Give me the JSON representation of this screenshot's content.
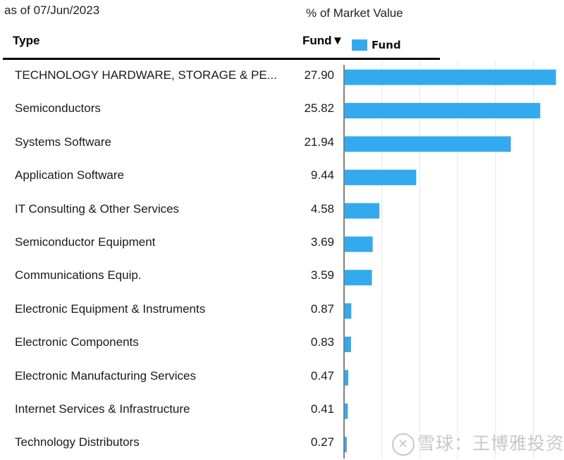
{
  "header": {
    "as_of": "as of 07/Jun/2023",
    "measure_title": "% of Market Value",
    "col_type": "Type",
    "col_fund": "Fund▼",
    "legend_label": "Fund"
  },
  "colors": {
    "bar": "#33aaee",
    "grid": "#e6e6e6",
    "axis": "#555555"
  },
  "watermark": {
    "icon": "snowball-logo-icon",
    "text": "雪球：王博雅投资"
  },
  "chart_data": {
    "type": "bar",
    "orientation": "horizontal",
    "title": "% of Market Value",
    "xlabel": "",
    "ylabel": "Type",
    "xlim": [
      0,
      28
    ],
    "grid": true,
    "grid_step": 5,
    "legend": {
      "entries": [
        "Fund"
      ],
      "placement": "top"
    },
    "categories": [
      "TECHNOLOGY HARDWARE, STORAGE & PE...",
      "Semiconductors",
      "Systems Software",
      "Application Software",
      "IT Consulting & Other Services",
      "Semiconductor Equipment",
      "Communications Equip.",
      "Electronic Equipment & Instruments",
      "Electronic Components",
      "Electronic Manufacturing Services",
      "Internet Services & Infrastructure",
      "Technology Distributors"
    ],
    "value_labels": [
      "27.90",
      "25.82",
      "21.94",
      "9.44",
      "4.58",
      "3.69",
      "3.59",
      "0.87",
      "0.83",
      "0.47",
      "0.41",
      "0.27"
    ],
    "series": [
      {
        "name": "Fund",
        "values": [
          27.9,
          25.82,
          21.94,
          9.44,
          4.58,
          3.69,
          3.59,
          0.87,
          0.83,
          0.47,
          0.41,
          0.27
        ]
      }
    ]
  }
}
